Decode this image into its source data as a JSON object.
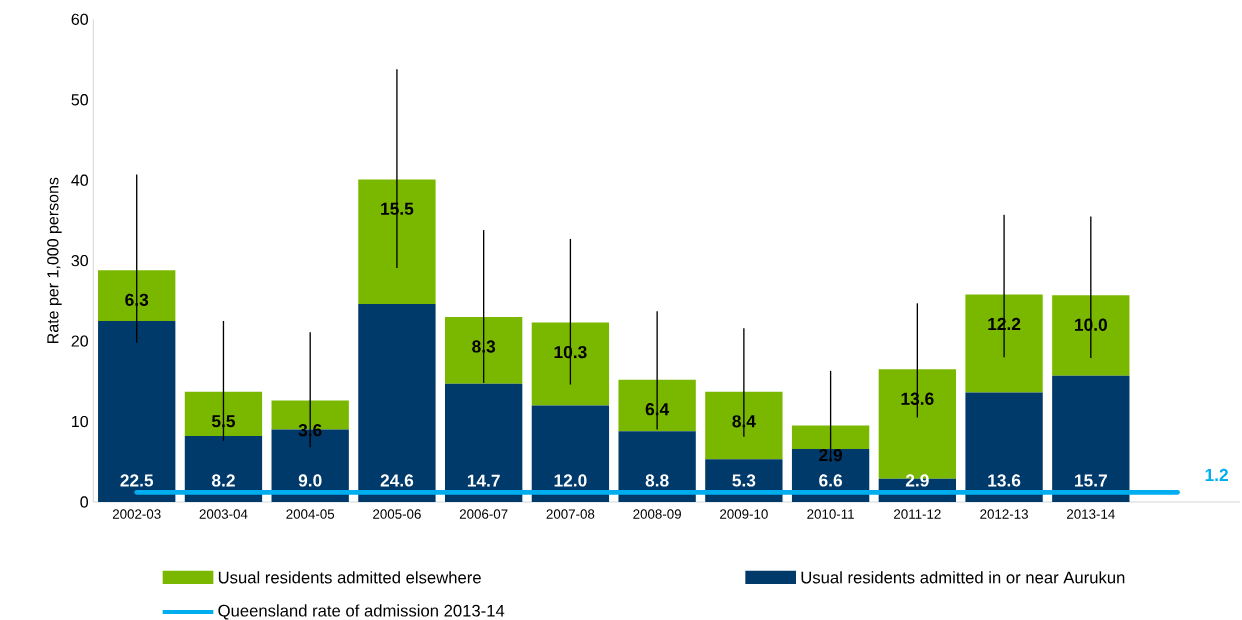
{
  "chart_data": {
    "type": "bar",
    "stacked": true,
    "ylabel": "Rate per 1,000 persons",
    "categories": [
      "2002-03",
      "2003-04",
      "2004-05",
      "2005-06",
      "2006-07",
      "2007-08",
      "2008-09",
      "2009-10",
      "2010-11",
      "2011-12",
      "2012-13",
      "2013-14"
    ],
    "series": [
      {
        "name": "Usual residents admitted in or near Aurukun",
        "color": "#003a6a",
        "values": [
          22.5,
          8.2,
          9.0,
          24.6,
          14.7,
          12.0,
          8.8,
          5.3,
          6.6,
          2.9,
          13.6,
          15.7
        ],
        "value_labels": [
          "22.5",
          "8.2",
          "9.0",
          "24.6",
          "14.7",
          "12.0",
          "8.8",
          "5.3",
          "6.6",
          "2.9",
          "13.6",
          "15.7"
        ]
      },
      {
        "name": "Usual residents admitted elsewhere",
        "color": "#7ab800",
        "values": [
          6.3,
          5.5,
          3.6,
          15.5,
          8.3,
          10.3,
          6.4,
          8.4,
          2.9,
          13.6,
          12.2,
          10.0
        ],
        "value_labels": [
          "6.3",
          "5.5",
          "3.6",
          "15.5",
          "8.3",
          "10.3",
          "6.4",
          "8.4",
          "2.9",
          "13.6",
          "12.2",
          "10.0"
        ],
        "errors": [
          [
            19.8,
            40.7
          ],
          [
            7.6,
            22.5
          ],
          [
            6.8,
            21.1
          ],
          [
            29.1,
            53.8
          ],
          [
            14.8,
            33.8
          ],
          [
            14.6,
            32.7
          ],
          [
            9.0,
            23.7
          ],
          [
            8.1,
            21.6
          ],
          [
            5.0,
            16.3
          ],
          [
            10.5,
            24.7
          ],
          [
            18.0,
            35.7
          ],
          [
            17.9,
            35.5
          ]
        ]
      }
    ],
    "ylim": [
      0,
      60
    ],
    "yticks": [
      0,
      10,
      20,
      30,
      40,
      50,
      60
    ],
    "ref_lines": [
      {
        "axis": "y",
        "value": 1.2,
        "label": "Queensland rate of admission 2013-14",
        "color": "#00aeef"
      }
    ],
    "annotations": [
      "1.2"
    ],
    "legend": "bottom"
  }
}
